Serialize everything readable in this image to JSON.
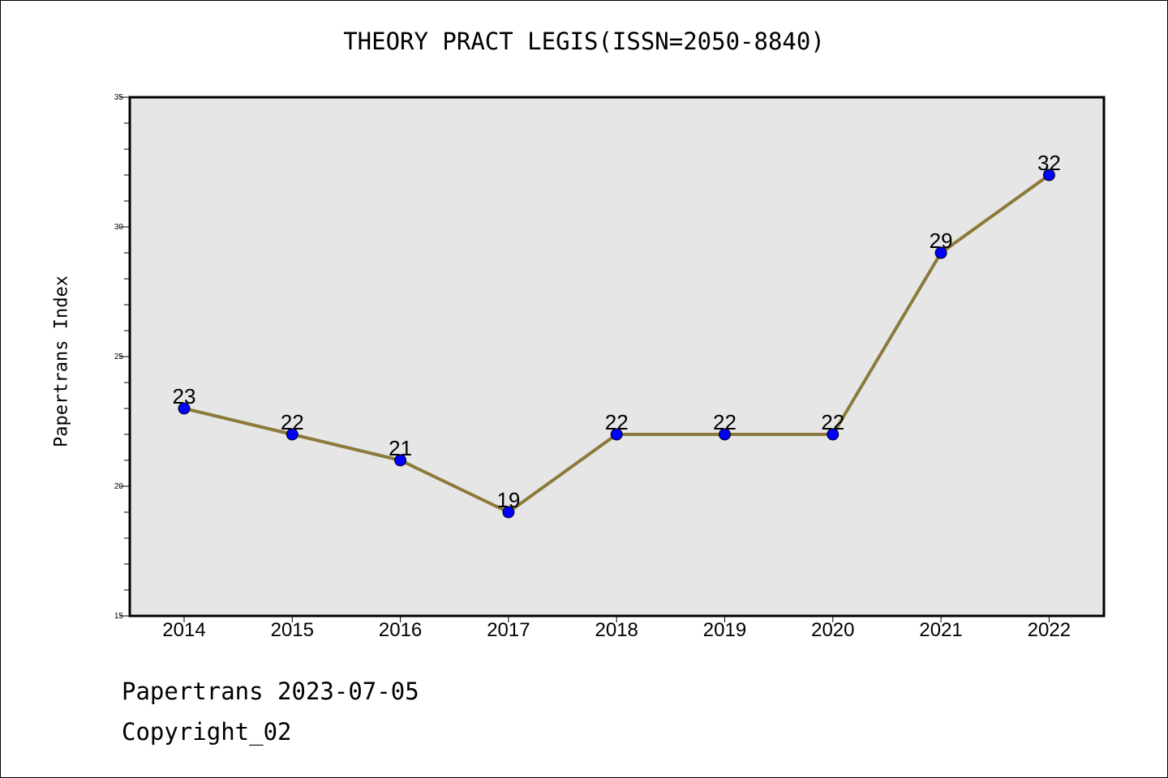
{
  "chart_data": {
    "type": "line",
    "title": "THEORY PRACT LEGIS(ISSN=2050-8840)",
    "xlabel": "",
    "ylabel": "Papertrans Index",
    "categories": [
      "2014",
      "2015",
      "2016",
      "2017",
      "2018",
      "2019",
      "2020",
      "2021",
      "2022"
    ],
    "series": [
      {
        "values": [
          23,
          22,
          21,
          19,
          22,
          22,
          22,
          29,
          32
        ]
      }
    ],
    "ylim": [
      15,
      35
    ],
    "yticks": [
      "15",
      "20",
      "25",
      "30",
      "35"
    ],
    "grid": false,
    "data_labels": true,
    "colors": {
      "line": "#8b7a3a",
      "marker": "#0000ff",
      "plot_bg": "#e6e6e6"
    }
  },
  "footer": {
    "date_text": "Papertrans 2023-07-05",
    "copyright_text": "Copyright_02"
  }
}
